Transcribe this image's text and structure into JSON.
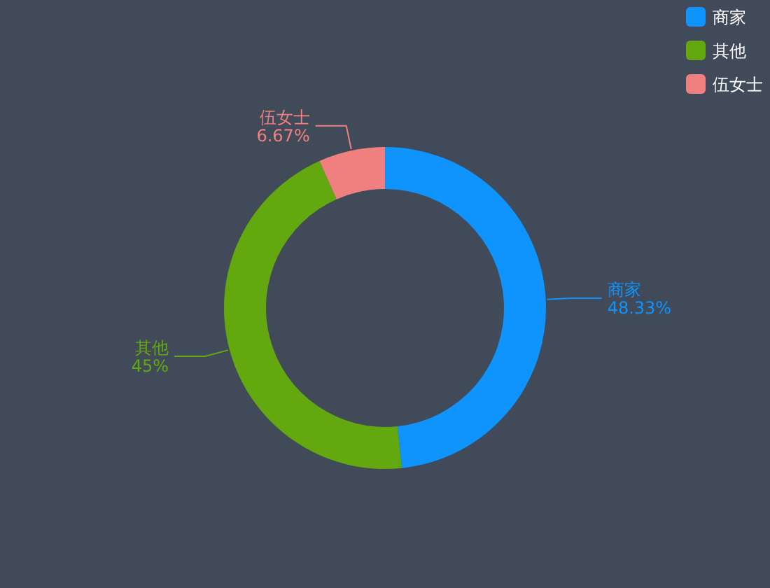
{
  "chart_data": {
    "type": "donut",
    "categories": [
      "商家",
      "其他",
      "伍女士"
    ],
    "values": [
      48.33,
      45,
      6.67
    ],
    "value_labels": [
      "48.33%",
      "45%",
      "6.67%"
    ],
    "colors": [
      "#0e94fc",
      "#62a80e",
      "#f08080"
    ],
    "legend": "top right"
  }
}
